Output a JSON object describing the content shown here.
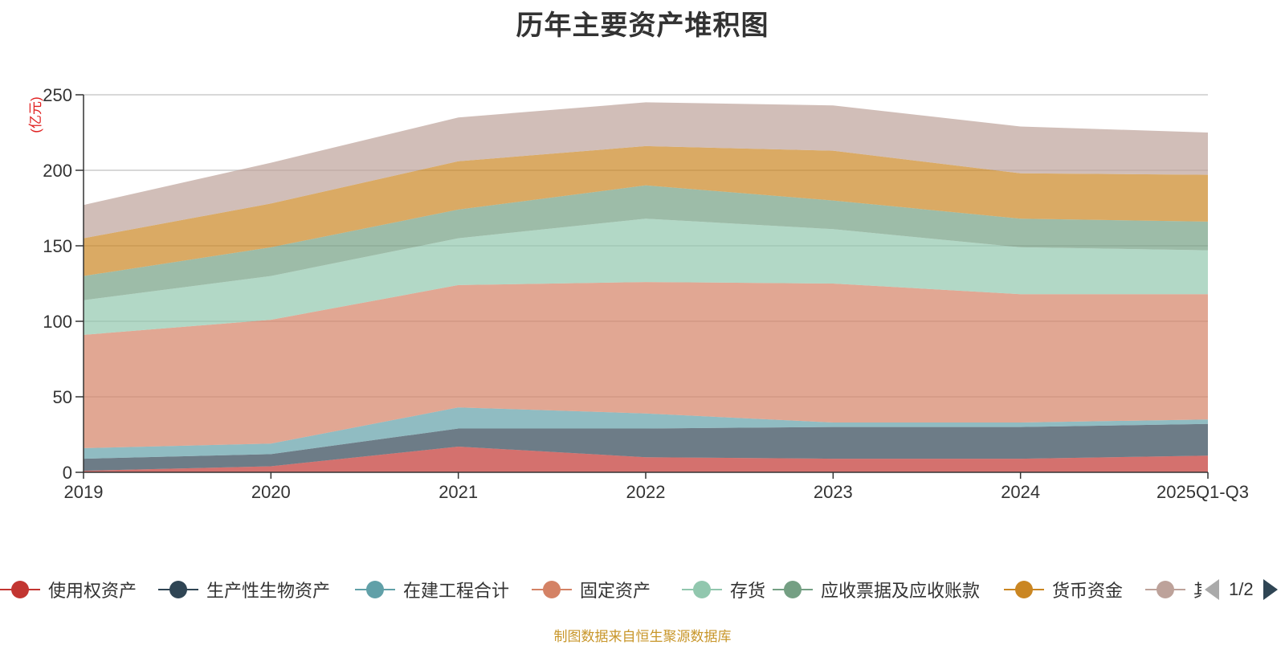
{
  "chart_data": {
    "type": "area",
    "stacked": true,
    "title": "历年主要资产堆积图",
    "unit_label": "(亿元)",
    "categories": [
      "2019",
      "2020",
      "2021",
      "2022",
      "2023",
      "2024",
      "2025Q1-Q3"
    ],
    "ylim": [
      0,
      250
    ],
    "yticks": [
      0,
      50,
      100,
      150,
      200,
      250
    ],
    "grid": true,
    "legend_position": "bottom",
    "series": [
      {
        "name": "使用权资产",
        "color": "#c23531",
        "values": [
          1,
          4,
          17,
          10,
          9,
          9,
          11
        ]
      },
      {
        "name": "生产性生物资产",
        "color": "#2f4554",
        "values": [
          8,
          8,
          12,
          19,
          21,
          21,
          21
        ]
      },
      {
        "name": "在建工程合计",
        "color": "#61a0a8",
        "values": [
          7,
          7,
          14,
          10,
          3,
          3,
          3
        ]
      },
      {
        "name": "固定资产",
        "color": "#d48265",
        "values": [
          75,
          82,
          81,
          87,
          92,
          85,
          83
        ]
      },
      {
        "name": "存货",
        "color": "#91c7ae",
        "values": [
          23,
          29,
          31,
          42,
          36,
          31,
          29
        ]
      },
      {
        "name": "应收票据及应收账款",
        "color": "#749f83",
        "values": [
          16,
          19,
          19,
          22,
          19,
          19,
          19
        ]
      },
      {
        "name": "货币资金",
        "color": "#ca8622",
        "values": [
          25,
          29,
          32,
          26,
          33,
          30,
          31
        ]
      },
      {
        "name": "其他",
        "color": "#bda29a",
        "values": [
          22,
          27,
          29,
          29,
          30,
          31,
          28
        ]
      }
    ]
  },
  "legend": {
    "pager_text": "1/2"
  },
  "footer": {
    "source_note": "制图数据来自恒生聚源数据库"
  }
}
